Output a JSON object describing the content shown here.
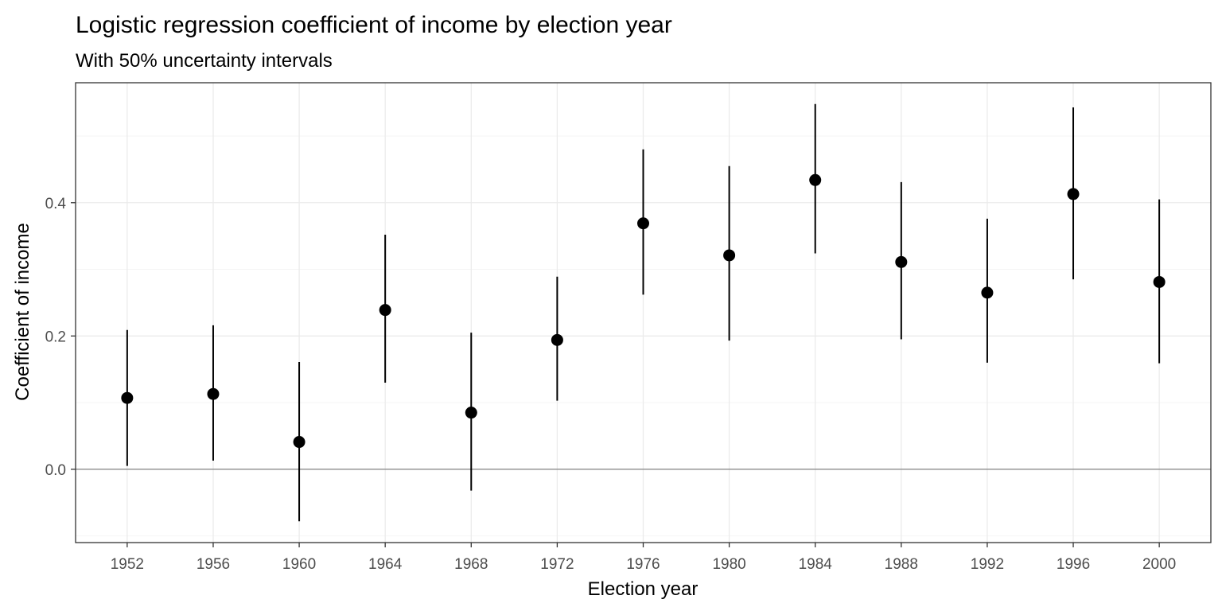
{
  "chart_data": {
    "type": "scatter",
    "title": "Logistic regression coefficient of income by election year",
    "subtitle": "With 50% uncertainty intervals",
    "xlabel": "Election year",
    "ylabel": "Coefficient of income",
    "x": [
      1952,
      1956,
      1960,
      1964,
      1968,
      1972,
      1976,
      1980,
      1984,
      1988,
      1992,
      1996,
      2000
    ],
    "x_tick_labels": [
      "1952",
      "1956",
      "1960",
      "1964",
      "1968",
      "1972",
      "1976",
      "1980",
      "1984",
      "1988",
      "1992",
      "1996",
      "2000"
    ],
    "y_tick_values": [
      0.0,
      0.2,
      0.4
    ],
    "y_tick_labels": [
      "0.0",
      "0.2",
      "0.4"
    ],
    "ylim": [
      -0.11,
      0.58
    ],
    "series": [
      {
        "values": [
          0.107,
          0.113,
          0.041,
          0.239,
          0.085,
          0.194,
          0.369,
          0.321,
          0.434,
          0.311,
          0.265,
          0.413,
          0.281
        ],
        "lower": [
          0.005,
          0.013,
          -0.078,
          0.13,
          -0.032,
          0.103,
          0.262,
          0.193,
          0.324,
          0.195,
          0.16,
          0.285,
          0.159
        ],
        "upper": [
          0.209,
          0.216,
          0.161,
          0.352,
          0.205,
          0.289,
          0.48,
          0.455,
          0.548,
          0.431,
          0.376,
          0.543,
          0.405
        ]
      }
    ],
    "reference_line": 0,
    "grid": true,
    "colors": {
      "points": "#000000",
      "panel_border": "#333333",
      "major_grid": "#ebebeb",
      "minor_grid": "#f5f5f5",
      "reference_line": "#8c8c8c"
    }
  }
}
